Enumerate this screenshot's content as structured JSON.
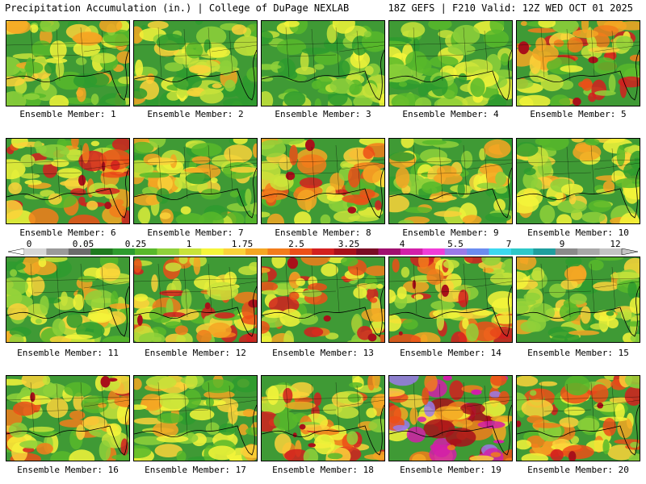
{
  "header": {
    "title_left": "Precipitation Accumulation (in.) | College of DuPage NEXLAB",
    "title_right": "18Z GEFS | F210 Valid: 12Z WED OCT 01 2025"
  },
  "colorbar": {
    "tick_labels": [
      "0",
      "0.05",
      "0.25",
      "1",
      "1.75",
      "2.5",
      "3.25",
      "4",
      "5.5",
      "7",
      "9",
      "12"
    ],
    "colors": [
      "#d6d6d6",
      "#9a9a9a",
      "#6b6b6b",
      "#1f7a1f",
      "#2e9b2e",
      "#58b82a",
      "#8fd13a",
      "#c8e33a",
      "#f5f53a",
      "#fbd23a",
      "#f5a623",
      "#f27c1b",
      "#ec4f18",
      "#d31f1f",
      "#a8101a",
      "#7a0a24",
      "#a00f6f",
      "#d21fa8",
      "#f03cd8",
      "#9b7ae8",
      "#6b8cf0",
      "#3cd8f0",
      "#2ec8c8",
      "#1e9e9e",
      "#8a8a8a",
      "#a8a8a8",
      "#c4c4c4"
    ]
  },
  "panels": [
    {
      "label": "Ensemble Member: 1",
      "intensity": 2
    },
    {
      "label": "Ensemble Member: 2",
      "intensity": 2
    },
    {
      "label": "Ensemble Member: 3",
      "intensity": 1
    },
    {
      "label": "Ensemble Member: 4",
      "intensity": 1
    },
    {
      "label": "Ensemble Member: 5",
      "intensity": 3
    },
    {
      "label": "Ensemble Member: 6",
      "intensity": 3
    },
    {
      "label": "Ensemble Member: 7",
      "intensity": 2
    },
    {
      "label": "Ensemble Member: 8",
      "intensity": 3
    },
    {
      "label": "Ensemble Member: 9",
      "intensity": 2
    },
    {
      "label": "Ensemble Member: 10",
      "intensity": 2
    },
    {
      "label": "Ensemble Member: 11",
      "intensity": 2
    },
    {
      "label": "Ensemble Member: 12",
      "intensity": 3
    },
    {
      "label": "Ensemble Member: 13",
      "intensity": 3
    },
    {
      "label": "Ensemble Member: 14",
      "intensity": 3
    },
    {
      "label": "Ensemble Member: 15",
      "intensity": 2
    },
    {
      "label": "Ensemble Member: 16",
      "intensity": 3
    },
    {
      "label": "Ensemble Member: 17",
      "intensity": 2
    },
    {
      "label": "Ensemble Member: 18",
      "intensity": 3
    },
    {
      "label": "Ensemble Member: 19",
      "intensity": 4
    },
    {
      "label": "Ensemble Member: 20",
      "intensity": 3
    }
  ]
}
